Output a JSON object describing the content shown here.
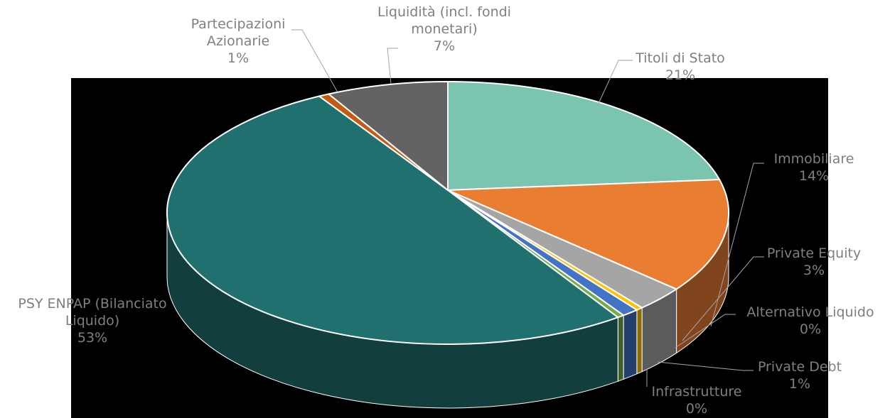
{
  "chart_data": {
    "type": "pie",
    "categories": [
      "Titoli di Stato",
      "Immobiliare",
      "Private Equity",
      "Alternativo Liquido",
      "Private Debt",
      "Infrastrutture",
      "PSY ENPAP (Bilanciato Liquido)",
      "Partecipazioni Azionarie",
      "Liquidità (incl. fondi monetari)"
    ],
    "values": [
      21,
      14,
      3,
      0.4,
      1,
      0.4,
      53,
      0.6,
      7
    ],
    "value_labels": [
      "21%",
      "14%",
      "3%",
      "0%",
      "1%",
      "0%",
      "53%",
      "1%",
      "7%"
    ],
    "colors": [
      "#7bc4b0",
      "#e97d32",
      "#a5a5a5",
      "#ffc000",
      "#4472c4",
      "#70ad47",
      "#217070",
      "#c55a11",
      "#636363"
    ]
  }
}
